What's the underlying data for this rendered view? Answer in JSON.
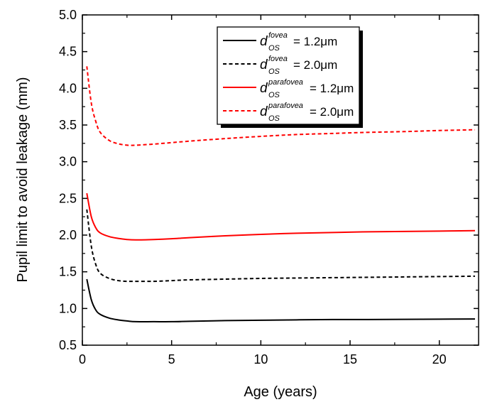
{
  "chart_data": {
    "type": "line",
    "xlabel": "Age (years)",
    "ylabel": "Pupil limit to avoid leakage (mm)",
    "xlim": [
      0,
      22.2
    ],
    "ylim": [
      0.5,
      5.0
    ],
    "xticks": [
      "0",
      "5",
      "10",
      "15",
      "20"
    ],
    "yticks": [
      "0.5",
      "1.0",
      "1.5",
      "2.0",
      "2.5",
      "3.0",
      "3.5",
      "4.0",
      "4.5",
      "5.0"
    ],
    "grid": false,
    "legend_position": "top-right",
    "series": [
      {
        "legend_base": "d",
        "legend_sup": "fovea",
        "legend_sub": "OS",
        "legend_value": "= 1.2μm",
        "color": "#000000",
        "dash": "solid",
        "x": [
          0.25,
          0.5,
          0.75,
          1.0,
          1.5,
          2.0,
          2.5,
          3.0,
          4.0,
          5.0,
          6.0,
          8.0,
          10.0,
          12.0,
          14.0,
          16.0,
          18.0,
          20.0,
          22.0
        ],
        "y": [
          1.4,
          1.12,
          0.98,
          0.92,
          0.87,
          0.845,
          0.83,
          0.82,
          0.82,
          0.82,
          0.825,
          0.835,
          0.84,
          0.845,
          0.85,
          0.85,
          0.852,
          0.855,
          0.857
        ]
      },
      {
        "legend_base": "d",
        "legend_sup": "fovea",
        "legend_sub": "OS",
        "legend_value": "= 2.0μm",
        "color": "#000000",
        "dash": "dashed",
        "x": [
          0.25,
          0.5,
          0.75,
          1.0,
          1.5,
          2.0,
          2.5,
          3.0,
          4.0,
          5.0,
          6.0,
          8.0,
          10.0,
          12.0,
          14.0,
          16.0,
          18.0,
          20.0,
          22.0
        ],
        "y": [
          2.35,
          1.85,
          1.6,
          1.48,
          1.41,
          1.38,
          1.37,
          1.37,
          1.37,
          1.38,
          1.39,
          1.4,
          1.41,
          1.415,
          1.42,
          1.425,
          1.43,
          1.435,
          1.44
        ]
      },
      {
        "legend_base": "d",
        "legend_sup": "parafovea",
        "legend_sub": "OS",
        "legend_value": "= 1.2μm",
        "color": "#ff0000",
        "dash": "solid",
        "x": [
          0.25,
          0.5,
          0.75,
          1.0,
          1.5,
          2.0,
          2.5,
          3.0,
          4.0,
          5.0,
          6.0,
          8.0,
          10.0,
          12.0,
          14.0,
          16.0,
          18.0,
          20.0,
          22.0
        ],
        "y": [
          2.57,
          2.25,
          2.1,
          2.03,
          1.98,
          1.955,
          1.94,
          1.935,
          1.94,
          1.95,
          1.965,
          1.99,
          2.01,
          2.025,
          2.035,
          2.045,
          2.05,
          2.055,
          2.06
        ]
      },
      {
        "legend_base": "d",
        "legend_sup": "parafovea",
        "legend_sub": "OS",
        "legend_value": "= 2.0μm",
        "color": "#ff0000",
        "dash": "dashed",
        "x": [
          0.25,
          0.5,
          0.75,
          1.0,
          1.5,
          2.0,
          2.5,
          3.0,
          4.0,
          5.0,
          6.0,
          8.0,
          10.0,
          12.0,
          14.0,
          16.0,
          18.0,
          20.0,
          22.0
        ],
        "y": [
          4.3,
          3.8,
          3.55,
          3.4,
          3.29,
          3.245,
          3.225,
          3.225,
          3.24,
          3.26,
          3.28,
          3.315,
          3.345,
          3.37,
          3.385,
          3.4,
          3.41,
          3.425,
          3.435
        ]
      }
    ]
  }
}
